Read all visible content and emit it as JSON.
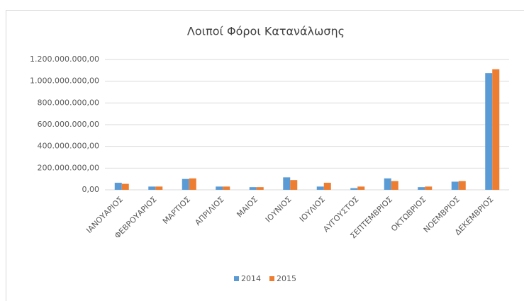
{
  "chart_data": {
    "type": "bar",
    "title": "Λοιποί Φόροι Κατανάλωσης",
    "categories": [
      "ΙΑΝΟΥΑΡΙΟΣ",
      "ΦΕΒΡΟΥΑΡΙΟΣ",
      "ΜΑΡΤΙΟΣ",
      "ΑΠΡΙΛΙΟΣ",
      "ΜΑΙΟΣ",
      "ΙΟΥΝΙΟΣ",
      "ΙΟΥΛΙΟΣ",
      "ΑΥΓΟΥΣΤΟΣ",
      "ΣΕΠΤΕΜΒΡΙΟΣ",
      "ΟΚΤΩΒΡΙΟΣ",
      "ΝΟΕΜΒΡΙΟΣ",
      "ΔΕΚΕΜΒΡΙΟΣ"
    ],
    "series": [
      {
        "name": "2014",
        "color": "#5b9bd5",
        "values": [
          65000000,
          30000000,
          100000000,
          30000000,
          25000000,
          115000000,
          30000000,
          15000000,
          105000000,
          25000000,
          75000000,
          1075000000
        ]
      },
      {
        "name": "2015",
        "color": "#ed7d31",
        "values": [
          55000000,
          30000000,
          105000000,
          30000000,
          25000000,
          90000000,
          65000000,
          30000000,
          80000000,
          30000000,
          80000000,
          1110000000
        ]
      }
    ],
    "ylim": [
      0,
      1200000000
    ],
    "yticks": [
      {
        "value": 0,
        "label": "0,00"
      },
      {
        "value": 200000000,
        "label": "200.000.000,00"
      },
      {
        "value": 400000000,
        "label": "400.000.000,00"
      },
      {
        "value": 600000000,
        "label": "600.000.000,00"
      },
      {
        "value": 800000000,
        "label": "800.000.000,00"
      },
      {
        "value": 1000000000,
        "label": "1.000.000.000,00"
      },
      {
        "value": 1200000000,
        "label": "1.200.000.000,00"
      }
    ],
    "grid": true,
    "legend": "bottom"
  }
}
